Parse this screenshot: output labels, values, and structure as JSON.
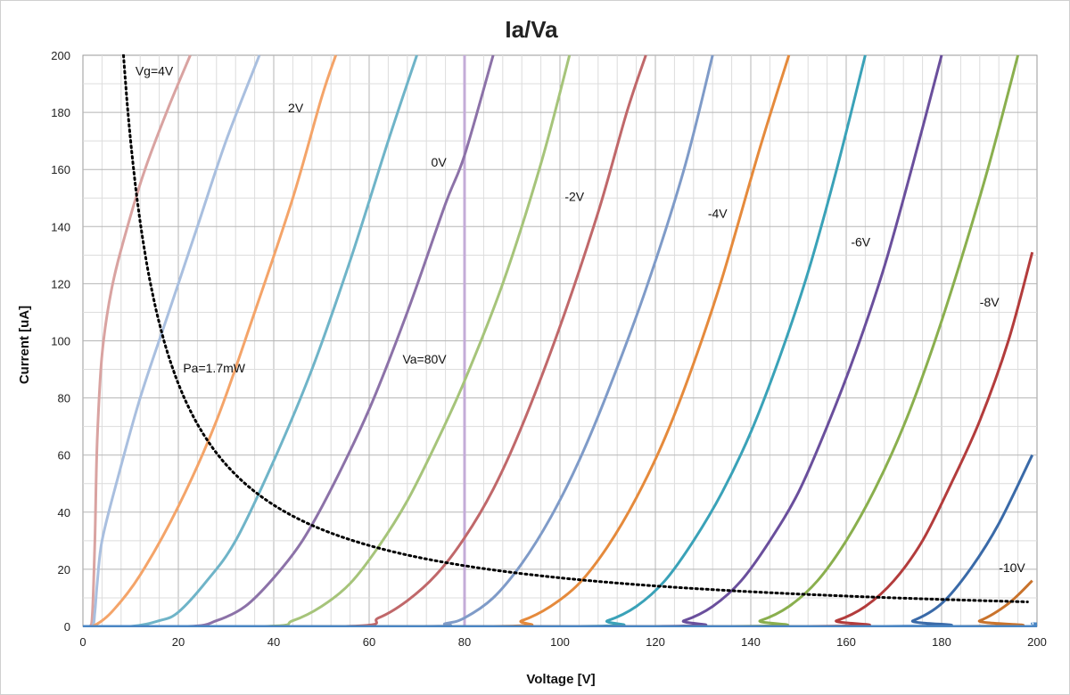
{
  "chart_data": {
    "type": "line",
    "title": "Ia/Va",
    "xlabel": "Voltage [V]",
    "ylabel": "Current [uA]",
    "xlim": [
      0,
      200
    ],
    "ylim": [
      0,
      200
    ],
    "x_ticks": [
      0,
      20,
      40,
      60,
      80,
      100,
      120,
      140,
      160,
      180,
      200
    ],
    "y_ticks": [
      0,
      20,
      40,
      60,
      80,
      100,
      120,
      140,
      160,
      180,
      200
    ],
    "minor_x_step": 4,
    "minor_y_step": 10,
    "grid": true,
    "legend": "none",
    "series": [
      {
        "color": "#d9a3a1",
        "x": [
          0,
          1.5,
          2.0,
          2.5,
          3.0,
          4.0,
          6.0,
          9.0,
          13.0,
          18.0,
          22.5
        ],
        "y": [
          0,
          0,
          5,
          30,
          65,
          95,
          118,
          138,
          160,
          182,
          200
        ]
      },
      {
        "color": "#a9bfdf",
        "x": [
          0,
          2.0,
          2.5,
          3.0,
          4.0,
          7.0,
          12.0,
          18.0,
          24.0,
          30.0,
          37.0
        ],
        "y": [
          0,
          0,
          5,
          15,
          30,
          50,
          80,
          110,
          140,
          170,
          200
        ]
      },
      {
        "color": "#f4a469",
        "x": [
          0,
          2.0,
          6.0,
          12.0,
          20.0,
          28.0,
          36.0,
          44.0,
          50.0,
          53.0
        ],
        "y": [
          0,
          0,
          5,
          18,
          42,
          72,
          110,
          150,
          185,
          200
        ]
      },
      {
        "color": "#6fb4c8",
        "x": [
          0,
          10.0,
          16.0,
          20.0,
          26.0,
          32.0,
          40.0,
          48.0,
          56.0,
          64.0,
          70.0
        ],
        "y": [
          0,
          0,
          2,
          5,
          16,
          30,
          58,
          90,
          128,
          170,
          200
        ]
      },
      {
        "color": "#8c72a8",
        "x": [
          0,
          22.0,
          28.0,
          34.0,
          40.0,
          46.0,
          52.0,
          60.0,
          68.0,
          76.0,
          80.0,
          86.0
        ],
        "y": [
          0,
          0,
          2,
          7,
          17,
          30,
          48,
          76,
          110,
          148,
          165,
          200
        ]
      },
      {
        "color": "#a6c47a",
        "x": [
          0,
          38.0,
          44.0,
          50.0,
          56.0,
          62.0,
          68.0,
          74.0,
          80.0,
          88.0,
          96.0,
          102.0
        ],
        "y": [
          0,
          0,
          2,
          7,
          15,
          28,
          44,
          64,
          86,
          120,
          162,
          200
        ]
      },
      {
        "color": "#c0686a",
        "x": [
          0,
          55.0,
          62.0,
          68.0,
          74.0,
          80.0,
          86.0,
          92.0,
          100.0,
          108.0,
          114.0,
          118.0
        ],
        "y": [
          0,
          0,
          3,
          9,
          18,
          31,
          48,
          70,
          105,
          145,
          180,
          200
        ]
      },
      {
        "color": "#7f9bc8",
        "x": [
          0,
          70.0,
          76.0,
          80.0,
          86.0,
          92.0,
          98.0,
          104.0,
          110.0,
          118.0,
          126.0,
          132.0
        ],
        "y": [
          0,
          0,
          1,
          3,
          10,
          22,
          38,
          58,
          82,
          118,
          160,
          200
        ]
      },
      {
        "color": "#e58a3c",
        "x": [
          0,
          86.0,
          92.0,
          98.0,
          104.0,
          110.0,
          116.0,
          122.0,
          128.0,
          134.0,
          142.0,
          148.0
        ],
        "y": [
          0,
          0,
          2,
          7,
          15,
          28,
          45,
          66,
          92,
          122,
          168,
          200
        ]
      },
      {
        "color": "#3aa2b8",
        "x": [
          0,
          104.0,
          110.0,
          116.0,
          122.0,
          128.0,
          134.0,
          140.0,
          146.0,
          152.0,
          158.0,
          164.0
        ],
        "y": [
          0,
          0,
          2,
          7,
          16,
          30,
          47,
          68,
          94,
          124,
          160,
          200
        ]
      },
      {
        "color": "#6a4f9c",
        "x": [
          0,
          120.0,
          126.0,
          132.0,
          138.0,
          144.0,
          150.0,
          156.0,
          162.0,
          168.0,
          174.0,
          180.0
        ],
        "y": [
          0,
          0,
          2,
          7,
          16,
          30,
          47,
          70,
          96,
          126,
          162,
          200
        ]
      },
      {
        "color": "#8aaf4e",
        "x": [
          0,
          136.0,
          142.0,
          148.0,
          154.0,
          160.0,
          166.0,
          172.0,
          178.0,
          184.0,
          190.0,
          196.0
        ],
        "y": [
          0,
          0,
          2,
          7,
          16,
          30,
          48,
          70,
          97,
          128,
          162,
          200
        ]
      },
      {
        "color": "#b33c3c",
        "x": [
          0,
          152.0,
          158.0,
          164.0,
          170.0,
          176.0,
          182.0,
          188.0,
          194.0,
          199.0
        ],
        "y": [
          0,
          0,
          2,
          7,
          16,
          30,
          50,
          72,
          100,
          131
        ]
      },
      {
        "color": "#3a6aa8",
        "x": [
          0,
          168.0,
          174.0,
          180.0,
          186.0,
          192.0,
          199.0
        ],
        "y": [
          0,
          0,
          2,
          8,
          20,
          36,
          60
        ]
      },
      {
        "color": "#c9732c",
        "x": [
          0,
          182.0,
          188.0,
          194.0,
          199.0
        ],
        "y": [
          0,
          0,
          2,
          8,
          16
        ]
      },
      {
        "color": "#4a86c4",
        "x": [
          0,
          195.0,
          199.0
        ],
        "y": [
          0,
          0,
          1
        ]
      }
    ],
    "load_line": {
      "x": 80,
      "color": "#c4acd8"
    },
    "power_curve": {
      "power_mW": 1.7,
      "x_from": 8.5,
      "x_to": 198,
      "color": "#000000"
    },
    "annotations": [
      {
        "text": "Vg=4V",
        "x": 11,
        "y": 193
      },
      {
        "text": "2V",
        "x": 43,
        "y": 180
      },
      {
        "text": "0V",
        "x": 73,
        "y": 161
      },
      {
        "text": "-2V",
        "x": 101,
        "y": 149
      },
      {
        "text": "-4V",
        "x": 131,
        "y": 143
      },
      {
        "text": "-6V",
        "x": 161,
        "y": 133
      },
      {
        "text": "-8V",
        "x": 188,
        "y": 112
      },
      {
        "text": "-10V",
        "x": 192,
        "y": 19
      },
      {
        "text": "Va=80V",
        "x": 67,
        "y": 92
      },
      {
        "text": "Pa=1.7mW",
        "x": 21,
        "y": 89
      }
    ]
  }
}
